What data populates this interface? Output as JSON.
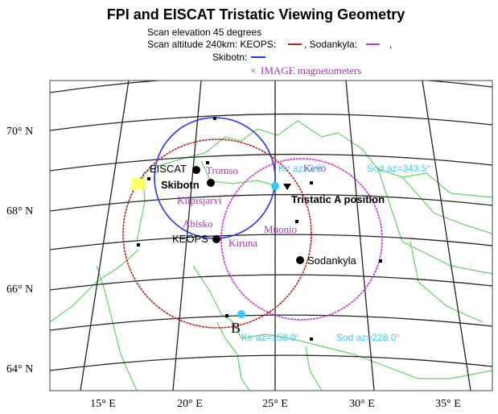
{
  "title": "FPI and EISCAT Tristatic Viewing Geometry",
  "legend": {
    "elevation": "Scan elevation 45 degrees",
    "altitude": "Scan altitude 240km: KEOPS:",
    "sodankyla": ", Sodankyla:",
    "separator": ",",
    "skibotn": "Skibotn:",
    "marker": "×",
    "magnetometers": "IMAGE magnetometers"
  },
  "latitude_labels": [
    "70° N",
    "68° N",
    "66° N",
    "64° N"
  ],
  "longitude_labels": [
    "15° E",
    "20° E",
    "25° E",
    "30° E",
    "35° E"
  ],
  "places": {
    "eiscat": "EISCAT",
    "tromso": "Tromso",
    "skibotn": "Skibotn",
    "kilpisjarvi": "Kilpisjarvi",
    "abisko": "Abisko",
    "keops": "KEOPS",
    "kiruna": "Kiruna",
    "muonio": "Muonio",
    "kevo": "Kevo",
    "sodankyla": "Sodankyla"
  },
  "annotations": {
    "tristatic_a": "Tristatic A position",
    "b": "B",
    "kir_az_a": "Kir az=3.8°",
    "sod_az_a": "Sod az=343.5°",
    "kir_az_b": "Kir az=158.0°",
    "sod_az_b": "Sod az=228.0°"
  }
}
